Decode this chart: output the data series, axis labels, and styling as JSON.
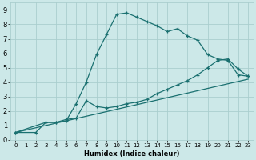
{
  "xlabel": "Humidex (Indice chaleur)",
  "bg_color": "#cce8e8",
  "grid_color": "#aacece",
  "line_color": "#1a7070",
  "xlim": [
    -0.5,
    23.5
  ],
  "ylim": [
    0,
    9.5
  ],
  "xticks": [
    0,
    1,
    2,
    3,
    4,
    5,
    6,
    7,
    8,
    9,
    10,
    11,
    12,
    13,
    14,
    15,
    16,
    17,
    18,
    19,
    20,
    21,
    22,
    23
  ],
  "yticks": [
    0,
    1,
    2,
    3,
    4,
    5,
    6,
    7,
    8,
    9
  ],
  "series1_x": [
    0,
    2,
    3,
    4,
    5,
    6,
    7,
    8,
    9,
    10,
    11,
    12,
    13,
    14,
    15,
    16,
    17,
    18,
    19,
    20,
    21,
    22,
    23
  ],
  "series1_y": [
    0.5,
    0.5,
    1.2,
    1.2,
    1.3,
    2.5,
    4.0,
    5.9,
    7.3,
    8.7,
    8.8,
    8.5,
    8.2,
    7.9,
    7.5,
    7.7,
    7.2,
    6.9,
    5.9,
    5.6,
    5.5,
    4.5,
    4.4
  ],
  "series2_x": [
    0,
    3,
    4,
    5,
    6,
    7,
    8,
    9,
    10,
    11,
    12,
    13,
    14,
    15,
    16,
    17,
    18,
    19,
    20,
    21,
    22,
    23
  ],
  "series2_y": [
    0.5,
    1.2,
    1.2,
    1.4,
    1.5,
    2.7,
    2.3,
    2.2,
    2.3,
    2.5,
    2.6,
    2.8,
    3.2,
    3.5,
    3.8,
    4.1,
    4.5,
    5.0,
    5.5,
    5.6,
    4.9,
    4.4
  ],
  "series3_x": [
    0,
    23
  ],
  "series3_y": [
    0.5,
    4.2
  ],
  "xtick_fontsize": 5,
  "ytick_fontsize": 6,
  "xlabel_fontsize": 6
}
